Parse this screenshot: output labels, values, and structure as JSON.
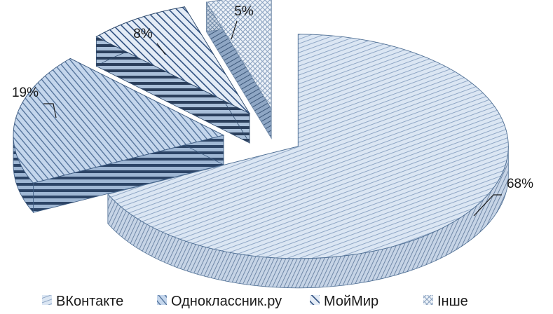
{
  "chart_data": {
    "type": "pie",
    "title": "",
    "categories": [
      "ВКонтакте",
      "Одноклассник.ру",
      "МойМир",
      "Інше"
    ],
    "values": [
      68,
      19,
      8,
      5
    ],
    "data_labels": [
      "68%",
      "19%",
      "8%",
      "5%"
    ],
    "legend_position": "bottom",
    "exploded": true,
    "three_d": true,
    "colors": [
      "#c9d9ec",
      "#a9c1de",
      "#6f8fb8",
      "#dfe8f3"
    ],
    "edge_colors": [
      "#4f6f94",
      "#3e5c82",
      "#2f4a6c",
      "#6f88a6"
    ]
  }
}
